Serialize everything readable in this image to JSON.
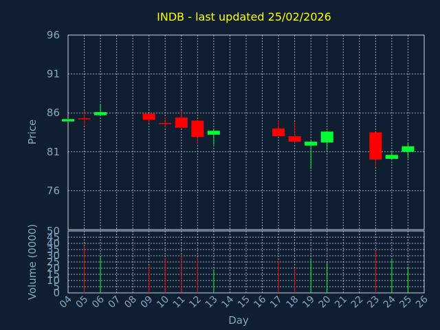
{
  "chart_data": {
    "type": "candlestick",
    "title": "INDB - last updated 25/02/2026",
    "ylabel_price": "Price",
    "ylabel_volume": "Volume (0000)",
    "xlabel": "Day",
    "price_ylim": [
      71,
      96
    ],
    "price_ticks": [
      96,
      91,
      86,
      81,
      76
    ],
    "volume_ylim": [
      0,
      50
    ],
    "volume_ticks": [
      50,
      45,
      40,
      35,
      30,
      25,
      20,
      15,
      10,
      5,
      0
    ],
    "x_labels": [
      "04",
      "05",
      "06",
      "07",
      "08",
      "09",
      "10",
      "11",
      "12",
      "13",
      "14",
      "15",
      "16",
      "17",
      "18",
      "19",
      "20",
      "21",
      "22",
      "23",
      "24",
      "25",
      "26"
    ],
    "up_color": "#00ff33",
    "down_color": "#ff0000",
    "background_color": "#0f1e30",
    "title_color": "#ffff00",
    "grid": true,
    "candles": [
      {
        "day": "04",
        "open": 84.9,
        "close": 85.2,
        "high": 85.3,
        "low": 84.8
      },
      {
        "day": "05",
        "open": 85.3,
        "close": 85.2,
        "high": 86.3,
        "low": 84.4
      },
      {
        "day": "06",
        "open": 85.7,
        "close": 86.1,
        "high": 87.1,
        "low": 85.6
      },
      {
        "day": "09",
        "open": 85.9,
        "close": 85.1,
        "high": 85.9,
        "low": 84.7
      },
      {
        "day": "10",
        "open": 84.7,
        "close": 84.6,
        "high": 85.4,
        "low": 84.1
      },
      {
        "day": "11",
        "open": 85.4,
        "close": 84.1,
        "high": 86.3,
        "low": 84.0
      },
      {
        "day": "12",
        "open": 85.0,
        "close": 82.9,
        "high": 85.0,
        "low": 82.0
      },
      {
        "day": "13",
        "open": 83.2,
        "close": 83.7,
        "high": 83.9,
        "low": 81.9
      },
      {
        "day": "17",
        "open": 84.0,
        "close": 83.0,
        "high": 85.0,
        "low": 83.0
      },
      {
        "day": "18",
        "open": 83.0,
        "close": 82.3,
        "high": 84.8,
        "low": 82.1
      },
      {
        "day": "19",
        "open": 81.8,
        "close": 82.3,
        "high": 82.4,
        "low": 78.8
      },
      {
        "day": "20",
        "open": 82.2,
        "close": 83.6,
        "high": 83.7,
        "low": 81.2
      },
      {
        "day": "23",
        "open": 83.5,
        "close": 80.0,
        "high": 83.5,
        "low": 79.1
      },
      {
        "day": "24",
        "open": 80.1,
        "close": 80.6,
        "high": 81.0,
        "low": 80.0
      },
      {
        "day": "25",
        "open": 81.0,
        "close": 81.7,
        "high": 82.2,
        "low": 80.2
      }
    ],
    "volume": [
      {
        "day": "04",
        "value": 0,
        "direction": "up"
      },
      {
        "day": "05",
        "value": 38,
        "direction": "down"
      },
      {
        "day": "06",
        "value": 29,
        "direction": "up"
      },
      {
        "day": "09",
        "value": 22,
        "direction": "down"
      },
      {
        "day": "10",
        "value": 28,
        "direction": "down"
      },
      {
        "day": "11",
        "value": 31,
        "direction": "down"
      },
      {
        "day": "12",
        "value": 29,
        "direction": "down"
      },
      {
        "day": "13",
        "value": 19,
        "direction": "up"
      },
      {
        "day": "17",
        "value": 26,
        "direction": "down"
      },
      {
        "day": "18",
        "value": 20,
        "direction": "down"
      },
      {
        "day": "19",
        "value": 28,
        "direction": "up"
      },
      {
        "day": "20",
        "value": 25,
        "direction": "up"
      },
      {
        "day": "23",
        "value": 34,
        "direction": "down"
      },
      {
        "day": "24",
        "value": 27,
        "direction": "up"
      },
      {
        "day": "25",
        "value": 20,
        "direction": "up"
      }
    ]
  }
}
